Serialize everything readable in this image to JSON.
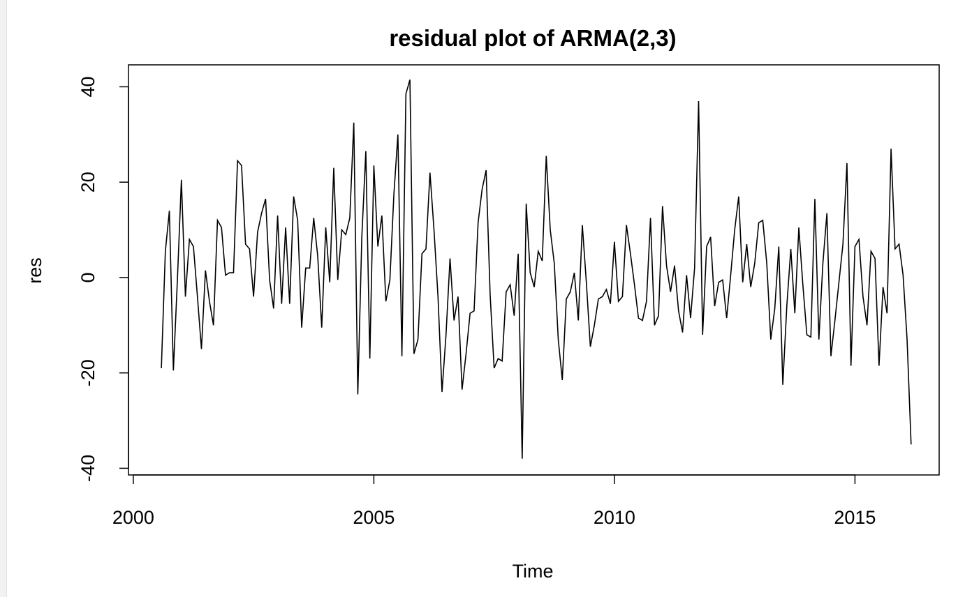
{
  "chart_data": {
    "type": "line",
    "title": "residual plot of ARMA(2,3)",
    "xlabel": "Time",
    "ylabel": "res",
    "xlim": [
      1999.9,
      2016.75
    ],
    "ylim": [
      -41.4,
      44.6
    ],
    "xticks": [
      2000,
      2005,
      2010,
      2015
    ],
    "yticks": [
      -40,
      -20,
      0,
      20,
      40
    ],
    "xtick_labels": [
      "2000",
      "2005",
      "2010",
      "2015"
    ],
    "ytick_labels": [
      "-40",
      "-20",
      "0",
      "20",
      "40"
    ],
    "grid": false,
    "series": [
      {
        "color": "#000000",
        "start": 2000.5833,
        "frequency": 12,
        "values": [
          -19,
          5.5,
          14,
          -19.5,
          -0.5,
          20.5,
          -4,
          8,
          6.5,
          -4,
          -15,
          1.5,
          -5,
          -10,
          12,
          10.5,
          0.5,
          1,
          1,
          24.5,
          23.5,
          7,
          6,
          -4,
          9.5,
          13.5,
          16.5,
          -0.5,
          -6.5,
          13,
          -5.5,
          10.5,
          -5.5,
          17,
          12,
          -10.5,
          2,
          2,
          12.5,
          4.5,
          -10.5,
          10.5,
          -1,
          23,
          -0.5,
          10,
          9,
          12.5,
          32.5,
          -24.5,
          8.5,
          26.5,
          -17,
          23.5,
          6.5,
          13,
          -5,
          -0.5,
          17.5,
          30,
          -16.5,
          38.5,
          41.5,
          -16,
          -13,
          5,
          6,
          22,
          10,
          -4,
          -24,
          -12,
          4,
          -9,
          -4,
          -23.5,
          -16,
          -7.5,
          -7,
          11.5,
          18.5,
          22.5,
          -3.5,
          -19,
          -17,
          -17.5,
          -3,
          -1.5,
          -8,
          5,
          -38,
          15.5,
          1,
          -2,
          5.5,
          3.5,
          25.5,
          10,
          3,
          -13,
          -21.5,
          -4.5,
          -3,
          1,
          -9,
          11,
          -1,
          -14.5,
          -10,
          -4.5,
          -4,
          -2.5,
          -5.5,
          7.5,
          -5,
          -4,
          11,
          5,
          -1.5,
          -8.5,
          -9,
          -5,
          12.5,
          -10,
          -8,
          15,
          2.5,
          -3,
          2.5,
          -7,
          -11.5,
          0.5,
          -8.5,
          2,
          37,
          -12,
          6.5,
          8.5,
          -6,
          -1,
          -0.5,
          -8.5,
          0.5,
          10,
          17,
          -1,
          7,
          -2,
          3,
          11.5,
          12,
          3,
          -13,
          -6.5,
          6.5,
          -22.5,
          -6,
          6,
          -7.5,
          10.5,
          -1.5,
          -12,
          -12.5,
          16.5,
          -13,
          3,
          13.5,
          -16.5,
          -9,
          -1,
          7,
          24,
          -18.5,
          6.5,
          8,
          -4,
          -10,
          5.5,
          4,
          -18.5,
          -2,
          -7.5,
          27,
          6,
          7,
          0.5,
          -13,
          -35
        ]
      }
    ]
  }
}
